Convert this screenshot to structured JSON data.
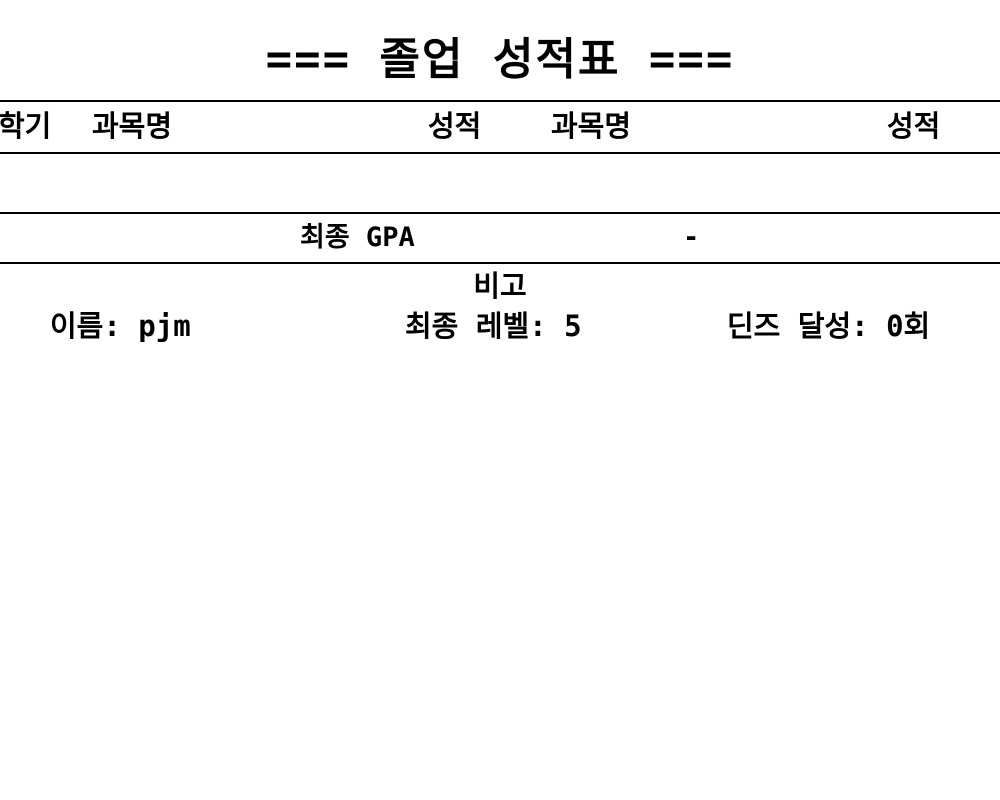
{
  "title": "=== 졸업 성적표 ===",
  "table": {
    "headers": [
      "학기",
      "과목명",
      "성적",
      "과목명",
      "성적"
    ],
    "rows": []
  },
  "gpa": {
    "label": "최종 GPA",
    "value": "-"
  },
  "remarks": {
    "heading": "비고",
    "name": "이름: pjm",
    "level": "최종 레벨: 5",
    "dean": "딘즈 달성: 0회"
  }
}
